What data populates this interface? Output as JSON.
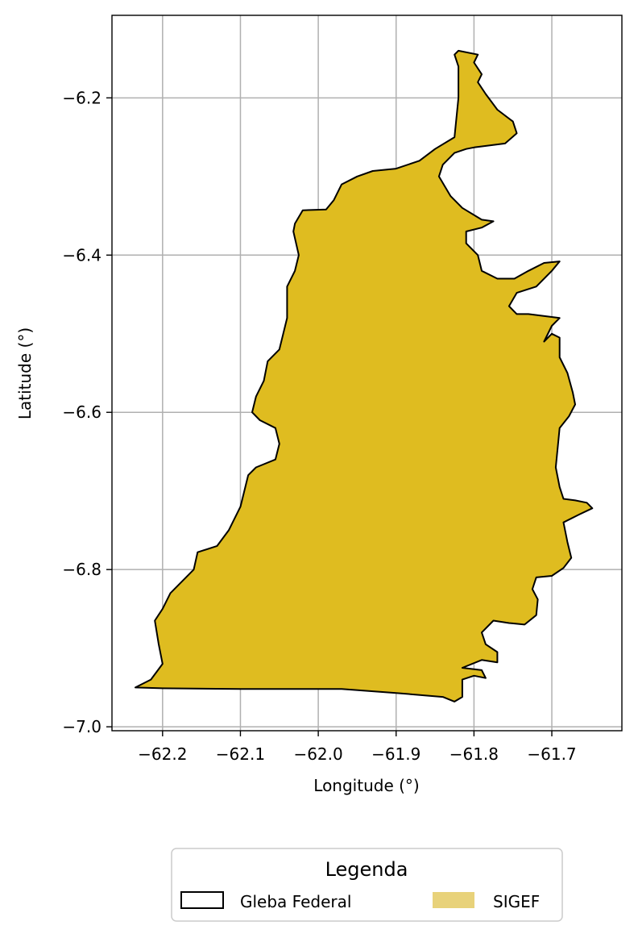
{
  "chart_data": {
    "type": "map",
    "xlabel": "Longitude (°)",
    "ylabel": "Latitude (°)",
    "xlim": [
      -62.265,
      -61.61
    ],
    "ylim": [
      -7.005,
      -6.095
    ],
    "xticks": [
      -62.2,
      -62.1,
      -62.0,
      -61.9,
      -61.8,
      -61.7
    ],
    "xtick_labels": [
      "−62.2",
      "−62.1",
      "−62.0",
      "−61.9",
      "−61.8",
      "−61.7"
    ],
    "yticks": [
      -6.2,
      -6.4,
      -6.6,
      -6.8,
      -7.0
    ],
    "ytick_labels": [
      "−6.2",
      "−6.4",
      "−6.6",
      "−6.8",
      "−7.0"
    ],
    "grid": true,
    "legend": {
      "title": "Legenda",
      "placement": "bottom-center",
      "entries": [
        {
          "label": "Gleba Federal",
          "style": "outline",
          "color": "#000000"
        },
        {
          "label": "SIGEF",
          "style": "fill",
          "color": "#E8D27A"
        }
      ]
    },
    "polygon": {
      "fill": "#DFBC20",
      "edge": "#000000",
      "coordinates": [
        [
          -62.235,
          -6.95
        ],
        [
          -62.2,
          -6.951
        ],
        [
          -62.1,
          -6.952
        ],
        [
          -61.97,
          -6.952
        ],
        [
          -61.9,
          -6.957
        ],
        [
          -61.84,
          -6.962
        ],
        [
          -61.825,
          -6.968
        ],
        [
          -61.815,
          -6.962
        ],
        [
          -61.815,
          -6.94
        ],
        [
          -61.8,
          -6.935
        ],
        [
          -61.785,
          -6.938
        ],
        [
          -61.79,
          -6.928
        ],
        [
          -61.815,
          -6.925
        ],
        [
          -61.79,
          -6.915
        ],
        [
          -61.77,
          -6.918
        ],
        [
          -61.77,
          -6.905
        ],
        [
          -61.785,
          -6.895
        ],
        [
          -61.79,
          -6.88
        ],
        [
          -61.775,
          -6.865
        ],
        [
          -61.755,
          -6.868
        ],
        [
          -61.735,
          -6.87
        ],
        [
          -61.72,
          -6.858
        ],
        [
          -61.718,
          -6.838
        ],
        [
          -61.725,
          -6.825
        ],
        [
          -61.72,
          -6.81
        ],
        [
          -61.7,
          -6.808
        ],
        [
          -61.685,
          -6.798
        ],
        [
          -61.675,
          -6.785
        ],
        [
          -61.68,
          -6.765
        ],
        [
          -61.685,
          -6.74
        ],
        [
          -61.665,
          -6.73
        ],
        [
          -61.648,
          -6.722
        ],
        [
          -61.655,
          -6.715
        ],
        [
          -61.67,
          -6.712
        ],
        [
          -61.685,
          -6.71
        ],
        [
          -61.69,
          -6.695
        ],
        [
          -61.695,
          -6.67
        ],
        [
          -61.692,
          -6.64
        ],
        [
          -61.69,
          -6.62
        ],
        [
          -61.678,
          -6.605
        ],
        [
          -61.67,
          -6.59
        ],
        [
          -61.673,
          -6.575
        ],
        [
          -61.68,
          -6.55
        ],
        [
          -61.69,
          -6.53
        ],
        [
          -61.69,
          -6.505
        ],
        [
          -61.7,
          -6.5
        ],
        [
          -61.71,
          -6.51
        ],
        [
          -61.7,
          -6.49
        ],
        [
          -61.69,
          -6.48
        ],
        [
          -61.73,
          -6.475
        ],
        [
          -61.745,
          -6.475
        ],
        [
          -61.755,
          -6.465
        ],
        [
          -61.745,
          -6.448
        ],
        [
          -61.72,
          -6.44
        ],
        [
          -61.7,
          -6.42
        ],
        [
          -61.69,
          -6.408
        ],
        [
          -61.71,
          -6.41
        ],
        [
          -61.73,
          -6.42
        ],
        [
          -61.748,
          -6.43
        ],
        [
          -61.77,
          -6.43
        ],
        [
          -61.79,
          -6.42
        ],
        [
          -61.795,
          -6.4
        ],
        [
          -61.81,
          -6.385
        ],
        [
          -61.81,
          -6.37
        ],
        [
          -61.79,
          -6.365
        ],
        [
          -61.775,
          -6.357
        ],
        [
          -61.79,
          -6.355
        ],
        [
          -61.815,
          -6.34
        ],
        [
          -61.83,
          -6.325
        ],
        [
          -61.845,
          -6.3
        ],
        [
          -61.84,
          -6.285
        ],
        [
          -61.825,
          -6.27
        ],
        [
          -61.81,
          -6.265
        ],
        [
          -61.8,
          -6.263
        ],
        [
          -61.76,
          -6.258
        ],
        [
          -61.745,
          -6.245
        ],
        [
          -61.75,
          -6.23
        ],
        [
          -61.77,
          -6.215
        ],
        [
          -61.785,
          -6.195
        ],
        [
          -61.795,
          -6.18
        ],
        [
          -61.79,
          -6.17
        ],
        [
          -61.8,
          -6.155
        ],
        [
          -61.795,
          -6.145
        ],
        [
          -61.82,
          -6.14
        ],
        [
          -61.825,
          -6.145
        ],
        [
          -61.82,
          -6.16
        ],
        [
          -61.82,
          -6.2
        ],
        [
          -61.825,
          -6.25
        ],
        [
          -61.85,
          -6.265
        ],
        [
          -61.87,
          -6.28
        ],
        [
          -61.9,
          -6.29
        ],
        [
          -61.93,
          -6.293
        ],
        [
          -61.95,
          -6.3
        ],
        [
          -61.97,
          -6.31
        ],
        [
          -61.98,
          -6.33
        ],
        [
          -61.99,
          -6.342
        ],
        [
          -62.02,
          -6.343
        ],
        [
          -62.03,
          -6.36
        ],
        [
          -62.032,
          -6.37
        ],
        [
          -62.025,
          -6.4
        ],
        [
          -62.03,
          -6.42
        ],
        [
          -62.04,
          -6.44
        ],
        [
          -62.04,
          -6.48
        ],
        [
          -62.045,
          -6.5
        ],
        [
          -62.05,
          -6.52
        ],
        [
          -62.065,
          -6.535
        ],
        [
          -62.07,
          -6.56
        ],
        [
          -62.08,
          -6.58
        ],
        [
          -62.085,
          -6.6
        ],
        [
          -62.075,
          -6.61
        ],
        [
          -62.055,
          -6.62
        ],
        [
          -62.05,
          -6.64
        ],
        [
          -62.055,
          -6.66
        ],
        [
          -62.08,
          -6.67
        ],
        [
          -62.09,
          -6.68
        ],
        [
          -62.1,
          -6.72
        ],
        [
          -62.11,
          -6.74
        ],
        [
          -62.115,
          -6.75
        ],
        [
          -62.13,
          -6.77
        ],
        [
          -62.155,
          -6.778
        ],
        [
          -62.16,
          -6.8
        ],
        [
          -62.175,
          -6.815
        ],
        [
          -62.19,
          -6.83
        ],
        [
          -62.2,
          -6.85
        ],
        [
          -62.21,
          -6.865
        ],
        [
          -62.205,
          -6.895
        ],
        [
          -62.2,
          -6.92
        ],
        [
          -62.215,
          -6.94
        ]
      ]
    }
  }
}
